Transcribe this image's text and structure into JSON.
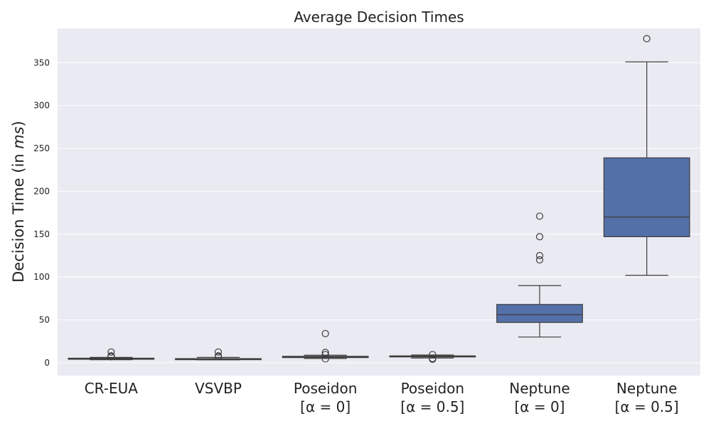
{
  "chart_data": {
    "type": "box",
    "title": "Average Decision Times",
    "ylabel_prefix": "Decision Time (in ",
    "ylabel_unit": "ms",
    "ylabel_suffix": ")",
    "xlabel": "",
    "ylim": [
      -15,
      390
    ],
    "yticks": [
      0,
      50,
      100,
      150,
      200,
      250,
      300,
      350
    ],
    "grid": true,
    "box_color": "#5470a8",
    "background_color": "#eaeaf2",
    "categories": [
      {
        "line1": "CR-EUA",
        "line2": "",
        "whisker_low": 3.5,
        "q1": 4.2,
        "median": 4.7,
        "q3": 5.3,
        "whisker_high": 6.2,
        "outliers": [
          7,
          7.5,
          8,
          12.5
        ]
      },
      {
        "line1": "VSVBP",
        "line2": "",
        "whisker_low": 3.4,
        "q1": 3.9,
        "median": 4.3,
        "q3": 4.8,
        "whisker_high": 6.2,
        "outliers": [
          7,
          8,
          12.5
        ]
      },
      {
        "line1": "Poseidon",
        "line2": "[α = 0]",
        "whisker_low": 5,
        "q1": 6,
        "median": 6.8,
        "q3": 7.5,
        "whisker_high": 8.8,
        "outliers": [
          4.5,
          9.5,
          12,
          34
        ]
      },
      {
        "line1": "Poseidon",
        "line2": "[α = 0.5]",
        "whisker_low": 5.5,
        "q1": 6.8,
        "median": 7.3,
        "q3": 8,
        "whisker_high": 9,
        "outliers": [
          4,
          5,
          9.5
        ]
      },
      {
        "line1": "Neptune",
        "line2": "[α = 0]",
        "whisker_low": 30,
        "q1": 47,
        "median": 56,
        "q3": 68,
        "whisker_high": 90,
        "outliers": [
          120,
          125,
          147,
          171
        ]
      },
      {
        "line1": "Neptune",
        "line2": "[α = 0.5]",
        "whisker_low": 102,
        "q1": 147,
        "median": 170,
        "q3": 239,
        "whisker_high": 351,
        "outliers": [
          378
        ]
      }
    ]
  }
}
